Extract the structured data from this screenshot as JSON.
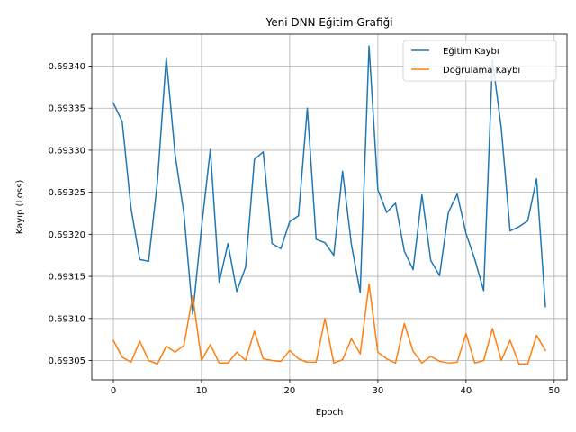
{
  "chart_data": {
    "type": "line",
    "title": "Yeni DNN Eğitim Grafiği",
    "xlabel": "Epoch",
    "ylabel": "Kayıp (Loss)",
    "xlim": [
      -2.45,
      51.45
    ],
    "ylim": [
      0.693027,
      0.693438
    ],
    "xticks": [
      0,
      10,
      20,
      30,
      40,
      50
    ],
    "yticks": [
      0.69305,
      0.6931,
      0.69315,
      0.6932,
      0.69325,
      0.6933,
      0.69335,
      0.6934
    ],
    "ytick_format": 5,
    "grid": true,
    "legend_position": "upper right",
    "x": [
      0,
      1,
      2,
      3,
      4,
      5,
      6,
      7,
      8,
      9,
      10,
      11,
      12,
      13,
      14,
      15,
      16,
      17,
      18,
      19,
      20,
      21,
      22,
      23,
      24,
      25,
      26,
      27,
      28,
      29,
      30,
      31,
      32,
      33,
      34,
      35,
      36,
      37,
      38,
      39,
      40,
      41,
      42,
      43,
      44,
      45,
      46,
      47,
      48,
      49
    ],
    "series": [
      {
        "name": "Eğitim Kaybı",
        "color": "#1f77b4",
        "values": [
          0.693356,
          0.693334,
          0.693231,
          0.69317,
          0.693168,
          0.693263,
          0.69341,
          0.693295,
          0.693225,
          0.693105,
          0.693208,
          0.693301,
          0.693143,
          0.693189,
          0.693132,
          0.693161,
          0.693289,
          0.693298,
          0.693189,
          0.693183,
          0.693215,
          0.693222,
          0.69335,
          0.693194,
          0.69319,
          0.693175,
          0.693275,
          0.693188,
          0.693131,
          0.693424,
          0.693253,
          0.693226,
          0.693237,
          0.69318,
          0.693158,
          0.693247,
          0.693169,
          0.693151,
          0.693226,
          0.693248,
          0.693201,
          0.69317,
          0.693133,
          0.693407,
          0.693326,
          0.693204,
          0.693209,
          0.693216,
          0.693266,
          0.693114
        ]
      },
      {
        "name": "Doğrulama Kaybı",
        "color": "#ff7f0e",
        "values": [
          0.693074,
          0.693054,
          0.693048,
          0.693073,
          0.69305,
          0.693046,
          0.693067,
          0.69306,
          0.693068,
          0.693127,
          0.69305,
          0.693069,
          0.693047,
          0.693047,
          0.69306,
          0.69305,
          0.693085,
          0.693052,
          0.69305,
          0.693049,
          0.693062,
          0.693052,
          0.693048,
          0.693048,
          0.6931,
          0.693047,
          0.693051,
          0.693076,
          0.693058,
          0.693141,
          0.69306,
          0.693052,
          0.693047,
          0.693094,
          0.693061,
          0.693047,
          0.693055,
          0.693049,
          0.693047,
          0.693048,
          0.693082,
          0.693047,
          0.69305,
          0.693088,
          0.69305,
          0.693074,
          0.693046,
          0.693046,
          0.69308,
          0.693062
        ]
      }
    ]
  }
}
